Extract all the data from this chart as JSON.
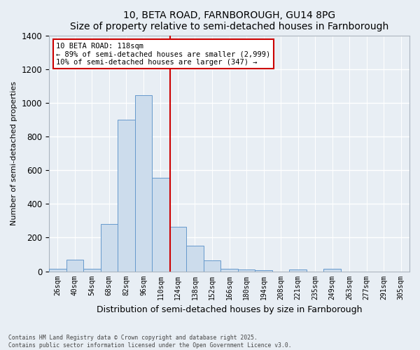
{
  "title1": "10, BETA ROAD, FARNBOROUGH, GU14 8PG",
  "title2": "Size of property relative to semi-detached houses in Farnborough",
  "xlabel": "Distribution of semi-detached houses by size in Farnborough",
  "ylabel": "Number of semi-detached properties",
  "categories": [
    "26sqm",
    "40sqm",
    "54sqm",
    "68sqm",
    "82sqm",
    "96sqm",
    "110sqm",
    "124sqm",
    "138sqm",
    "152sqm",
    "166sqm",
    "180sqm",
    "194sqm",
    "208sqm",
    "221sqm",
    "235sqm",
    "249sqm",
    "263sqm",
    "277sqm",
    "291sqm",
    "305sqm"
  ],
  "values": [
    15,
    70,
    15,
    280,
    900,
    1045,
    555,
    265,
    150,
    65,
    15,
    10,
    5,
    0,
    10,
    0,
    15,
    0,
    0,
    0,
    0
  ],
  "bar_color": "#ccdcec",
  "bar_edge_color": "#6699cc",
  "bar_width": 1.0,
  "vline_color": "#cc0000",
  "ylim": [
    0,
    1400
  ],
  "yticks": [
    0,
    200,
    400,
    600,
    800,
    1000,
    1200,
    1400
  ],
  "bg_color": "#e8eef4",
  "plot_bg_color": "#e8eef4",
  "grid_color": "#ffffff",
  "annotation_title": "10 BETA ROAD: 118sqm",
  "annotation_line1": "← 89% of semi-detached houses are smaller (2,999)",
  "annotation_line2": "10% of semi-detached houses are larger (347) →",
  "annotation_box_color": "#ffffff",
  "annotation_box_edge": "#cc0000",
  "footer1": "Contains HM Land Registry data © Crown copyright and database right 2025.",
  "footer2": "Contains public sector information licensed under the Open Government Licence v3.0.",
  "title_fontsize": 10,
  "ylabel_fontsize": 8,
  "xlabel_fontsize": 9
}
